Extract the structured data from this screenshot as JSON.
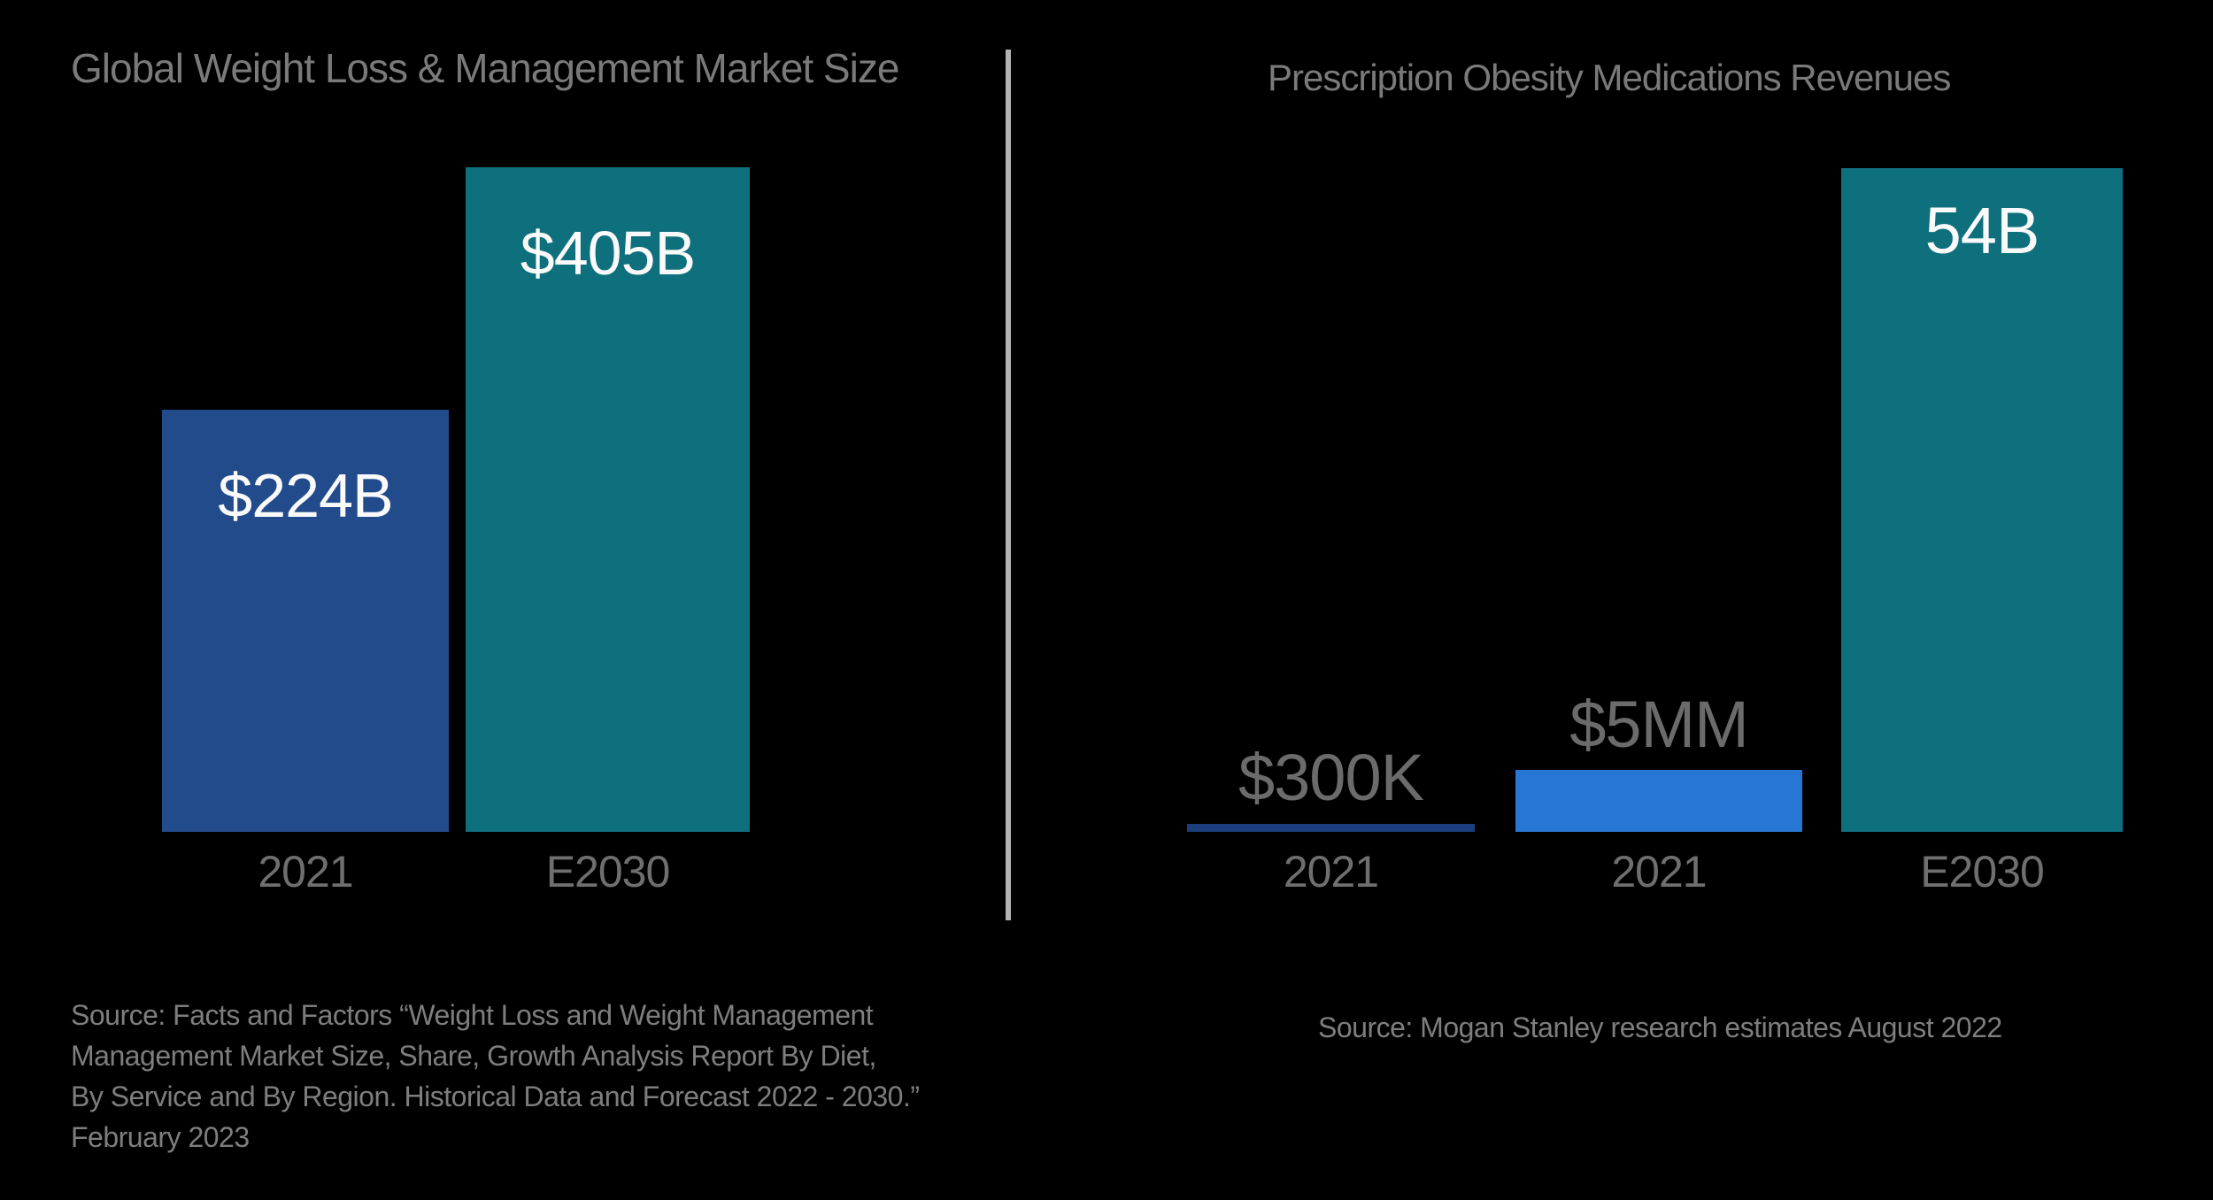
{
  "page": {
    "background_color": "#000000",
    "divider_color": "#B3B3B3"
  },
  "charts": [
    {
      "title": "Global Weight Loss & Management Market Size",
      "bars": [
        {
          "label": "$224B",
          "category": "2021",
          "color": "#224B8C"
        },
        {
          "label": "$405B",
          "category": "E2030",
          "color": "#0D707C"
        }
      ],
      "source_lines": [
        "Source: Facts and Factors “Weight Loss and Weight Management",
        "Management Market Size, Share, Growth Analysis Report By Diet,",
        "By Service and By Region. Historical Data and Forecast 2022 - 2030.”",
        "February 2023"
      ]
    },
    {
      "title": "Prescription Obesity Medications Revenues",
      "bars": [
        {
          "label": "$300K",
          "category": "2021",
          "color": "#1D3E7C"
        },
        {
          "label": "$5MM",
          "category": "2021",
          "color": "#2876D4"
        },
        {
          "label": "54B",
          "category": "E2030",
          "color": "#0D707C"
        }
      ],
      "source_lines": [
        "Source: Mogan Stanley research estimates August 2022"
      ]
    }
  ],
  "chart_data": [
    {
      "type": "bar",
      "title": "Global Weight Loss & Management Market Size",
      "categories": [
        "2021",
        "E2030"
      ],
      "values": [
        224,
        405
      ],
      "unit": "USD billions",
      "data_labels": [
        "$224B",
        "$405B"
      ],
      "bar_colors": [
        "#224B8C",
        "#0D707C"
      ],
      "label_colors": [
        "#FAFAFA",
        "#FAFAFA"
      ],
      "xlabel": "",
      "ylabel": "",
      "axes_shown": false,
      "grid": false,
      "legend": "none",
      "background": "#000000",
      "source": "Source: Facts and Factors “Weight Loss and Weight Management Management Market Size, Share, Growth Analysis Report By Diet, By Service and By Region. Historical Data and Forecast 2022 - 2030.” February 2023"
    },
    {
      "type": "bar",
      "title": "Prescription Obesity Medications Revenues",
      "categories": [
        "2021",
        "2021",
        "E2030"
      ],
      "values_usd": [
        300000,
        5000000,
        54000000000
      ],
      "data_labels": [
        "$300K",
        "$5MM",
        "54B"
      ],
      "bar_colors": [
        "#1D3E7C",
        "#2876D4",
        "#0D707C"
      ],
      "label_colors": [
        "#6B6B6B",
        "#6B6B6B",
        "#FAFAFA"
      ],
      "xlabel": "",
      "ylabel": "",
      "axes_shown": false,
      "grid": false,
      "legend": "none",
      "bars_not_to_scale": true,
      "background": "#000000",
      "source": "Source: Mogan Stanley research estimates August 2022"
    }
  ]
}
